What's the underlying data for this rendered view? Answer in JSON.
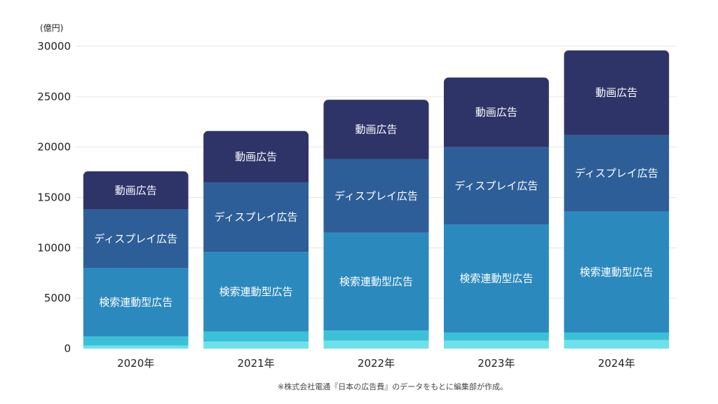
{
  "chart_data": {
    "type": "bar",
    "stacked": true,
    "unit_label": "(億円)",
    "categories": [
      "2020年",
      "2021年",
      "2022年",
      "2023年",
      "2024年"
    ],
    "ylim": [
      0,
      30000
    ],
    "yticks": [
      0,
      5000,
      10000,
      15000,
      20000,
      25000,
      30000
    ],
    "grid": true,
    "series": [
      {
        "name": "",
        "color": "#6fe0ea",
        "values": [
          300,
          700,
          800,
          800,
          850
        ]
      },
      {
        "name": "",
        "color": "#3cc0d8",
        "values": [
          900,
          1000,
          1000,
          800,
          750
        ]
      },
      {
        "name": "検索連動型広告",
        "color": "#2b89bd",
        "values": [
          6800,
          7900,
          9700,
          10700,
          12000
        ]
      },
      {
        "name": "ディスプレイ広告",
        "color": "#2d5e98",
        "values": [
          5800,
          6900,
          7300,
          7700,
          7600
        ]
      },
      {
        "name": "動画広告",
        "color": "#2e3468",
        "values": [
          3800,
          5100,
          5900,
          6900,
          8400
        ]
      }
    ]
  },
  "footnote": "※株式会社電通『日本の広告費』のデータをもとに編集部が作成。"
}
